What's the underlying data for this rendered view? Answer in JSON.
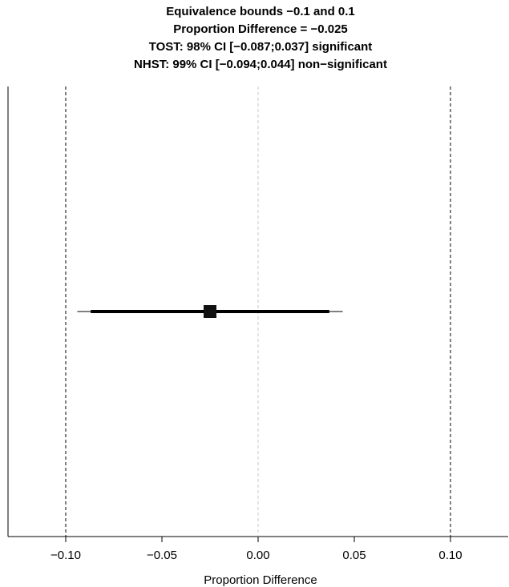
{
  "chart_data": {
    "type": "forest",
    "title_lines": [
      "Equivalence bounds −0.1 and 0.1",
      "Proportion Difference = −0.025",
      "TOST: 98% CI [−0.087;0.037] significant",
      "NHST: 99% CI [−0.094;0.044] non−significant"
    ],
    "xlabel": "Proportion Difference",
    "xlim": [
      -0.13,
      0.13
    ],
    "x_ticks": [
      -0.1,
      -0.05,
      0.0,
      0.05,
      0.1
    ],
    "x_tick_labels": [
      "−0.10",
      "−0.05",
      "0.00",
      "0.05",
      "0.10"
    ],
    "equivalence_bounds": [
      -0.1,
      0.1
    ],
    "null_line": 0,
    "estimate": -0.025,
    "tost_ci": [
      -0.087,
      0.037
    ],
    "nhst_ci": [
      -0.094,
      0.044
    ],
    "grid": false,
    "colors": {
      "bound_line": "#000000",
      "null_line": "#c8c8c8",
      "ci_line": "#000000",
      "point": "#111111"
    }
  }
}
